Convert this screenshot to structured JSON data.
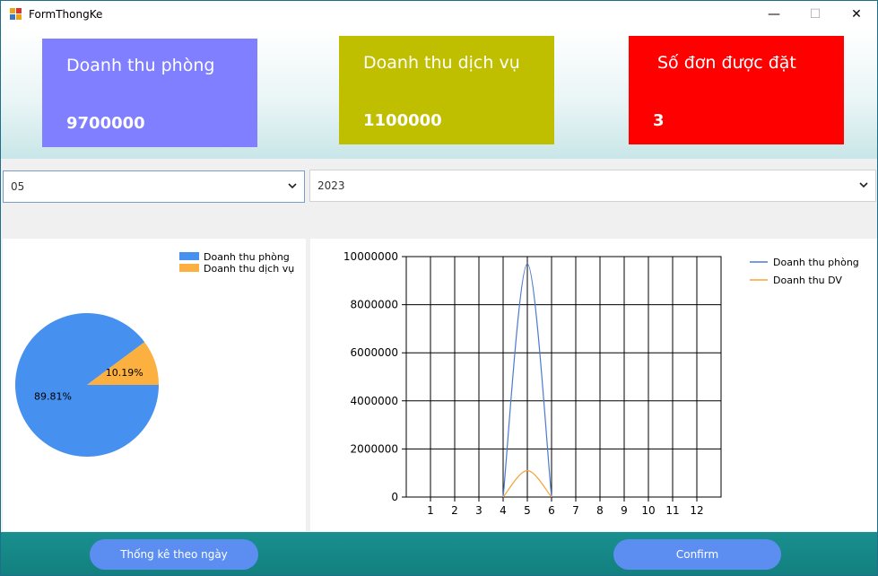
{
  "window": {
    "title": "FormThongKe",
    "minimize": "—",
    "maximize": "☐",
    "close": "✕"
  },
  "cards": [
    {
      "label": "Doanh thu phòng",
      "value": "9700000",
      "color": "#7f7fff"
    },
    {
      "label": "Doanh thu dịch vụ",
      "value": "1100000",
      "color": "#bfbf00"
    },
    {
      "label": "Số đơn được đặt",
      "value": "3",
      "color": "#ff0000"
    }
  ],
  "filters": {
    "month": "05",
    "year": "2023"
  },
  "pie": {
    "legend": [
      "Doanh thu phòng",
      "Doanh thu dịch vụ"
    ],
    "labels": [
      "89.81%",
      "10.19%"
    ],
    "colors": [
      "#4690f0",
      "#fbb040"
    ]
  },
  "buttons": {
    "daily": "Thống kê theo ngày",
    "confirm": "Confirm"
  },
  "chart_data": [
    {
      "type": "pie",
      "categories": [
        "Doanh thu phòng",
        "Doanh thu dịch vụ"
      ],
      "values": [
        89.81,
        10.19
      ],
      "labels": [
        "89.81%",
        "10.19%"
      ],
      "legend": "top-right"
    },
    {
      "type": "line",
      "x": [
        1,
        2,
        3,
        4,
        5,
        6,
        7,
        8,
        9,
        10,
        11,
        12
      ],
      "series": [
        {
          "name": "Doanh thu phòng",
          "values": [
            null,
            null,
            null,
            0,
            9700000,
            0,
            null,
            null,
            null,
            null,
            null,
            null
          ],
          "color": "#4a7ad0"
        },
        {
          "name": "Doanh thu DV",
          "values": [
            null,
            null,
            null,
            0,
            1100000,
            0,
            null,
            null,
            null,
            null,
            null,
            null
          ],
          "color": "#f5a33a"
        }
      ],
      "yticks": [
        "0",
        "2000000",
        "4000000",
        "6000000",
        "8000000",
        "10000000"
      ],
      "xticks": [
        "1",
        "2",
        "3",
        "4",
        "5",
        "6",
        "7",
        "8",
        "9",
        "10",
        "11",
        "12"
      ],
      "ylim": [
        0,
        10000000
      ],
      "xlim": [
        0,
        13
      ],
      "grid": true,
      "legend": "top-right"
    }
  ]
}
